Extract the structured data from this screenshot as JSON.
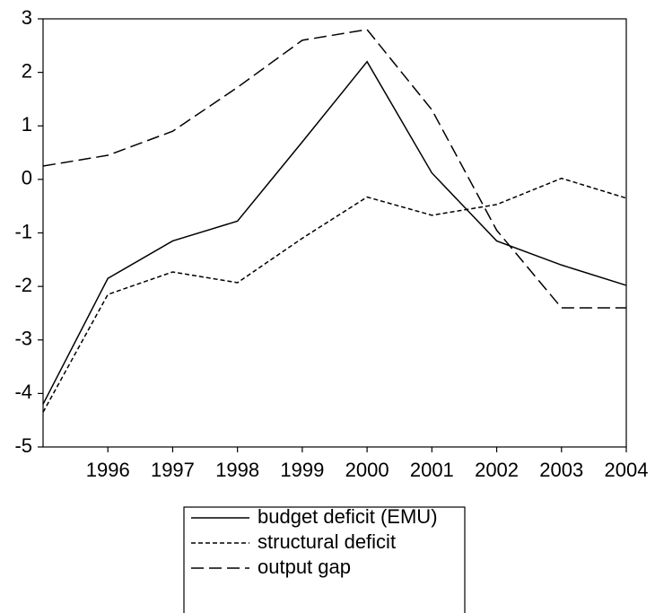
{
  "chart_data": {
    "type": "line",
    "x": [
      1995,
      1996,
      1997,
      1998,
      1999,
      2000,
      2001,
      2002,
      2003,
      2004
    ],
    "xlim": [
      1995,
      2004
    ],
    "xticks": [
      1996,
      1997,
      1998,
      1999,
      2000,
      2001,
      2002,
      2003,
      2004
    ],
    "ylim": [
      -5,
      3
    ],
    "yticks": [
      -5,
      -4,
      -3,
      -2,
      -1,
      0,
      1,
      2,
      3
    ],
    "series": [
      {
        "name": "budget deficit (EMU)",
        "color": "#000000",
        "dash": "solid",
        "values": [
          -4.2,
          -1.85,
          -1.15,
          -0.78,
          0.7,
          2.2,
          0.12,
          -1.15,
          -1.6,
          -1.98
        ]
      },
      {
        "name": "structural deficit",
        "color": "#000000",
        "dash": "short",
        "values": [
          -4.35,
          -2.15,
          -1.73,
          -1.93,
          -1.1,
          -0.33,
          -0.67,
          -0.47,
          0.02,
          -0.35
        ]
      },
      {
        "name": "output gap",
        "color": "#000000",
        "dash": "long",
        "values": [
          0.25,
          0.45,
          0.9,
          1.72,
          2.6,
          2.8,
          1.3,
          -0.95,
          -2.4,
          -2.4
        ]
      }
    ]
  }
}
